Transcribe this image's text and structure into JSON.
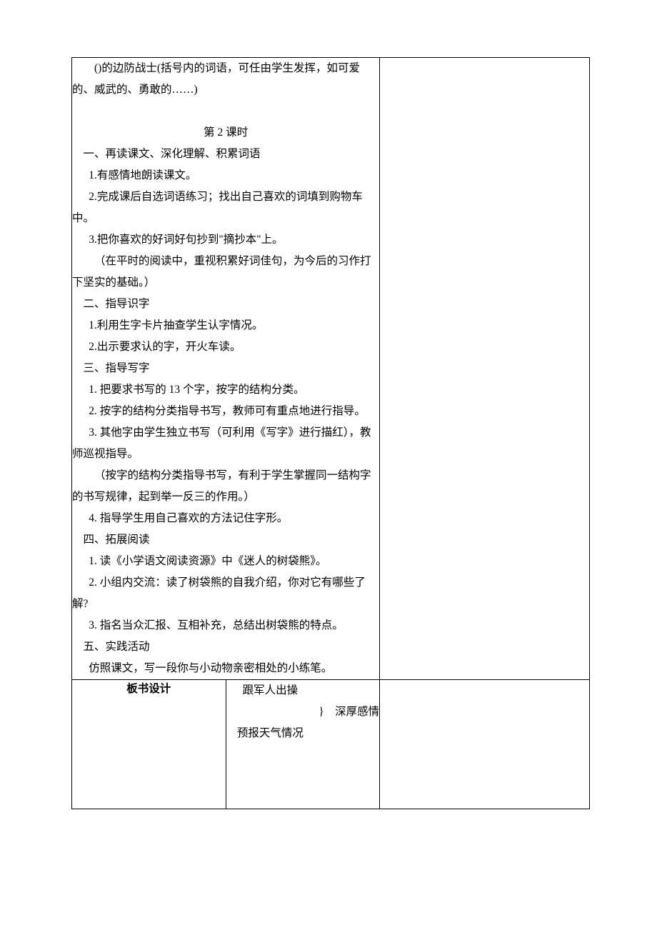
{
  "main": {
    "intro_line": "()的边防战士(括号内的词语，可任由学生发挥，如可爱的、威武的、勇敢的……)",
    "lesson_title": "第 2 课时",
    "section1": {
      "heading": "一、再读课文、深化理解、积累词语",
      "item1": "1.有感情地朗读课文。",
      "item2": "2.完成课后自选词语练习；找出自己喜欢的词填到购物车中。",
      "item3": "3.把你喜欢的好词好句抄到\"摘抄本\"上。",
      "note": "（在平时的阅读中，重视积累好词佳句，为今后的习作打下坚实的基础。）"
    },
    "section2": {
      "heading": "二、指导识字",
      "item1": "1.利用生字卡片抽查学生认字情况。",
      "item2": "2.出示要求认的字，开火车读。"
    },
    "section3": {
      "heading": "三、指导写字",
      "item1": "1. 把要求书写的 13 个字，按字的结构分类。",
      "item2": "2. 按字的结构分类指导书写，教师可有重点地进行指导。",
      "item3": "3. 其他字由学生独立书写（可利用《写字》进行描红），教师巡视指导。",
      "note": "（按字的结构分类指导书写，有利于学生掌握同一结构字的书写规律，起到举一反三的作用。）",
      "item4": "4. 指导学生用自己喜欢的方法记住字形。"
    },
    "section4": {
      "heading": "四、拓展阅读",
      "item1": "1. 读《小学语文阅读资源》中《迷人的树袋熊》。",
      "item2": "2. 小组内交流：读了树袋熊的自我介绍，你对它有哪些了解?",
      "item3": "3. 指名当众汇报、互相补充，总结出树袋熊的特点。"
    },
    "section5": {
      "heading": "五、实践活动",
      "item1": "仿照课文，写一段你与小动物亲密相处的小练笔。"
    }
  },
  "board": {
    "label": "板书设计",
    "line1": "跟军人出操",
    "brace_text": "}　深厚感情",
    "line2": "预报天气情况"
  },
  "styles": {
    "font_size": 15.5,
    "line_height": 30,
    "border_color": "#000000",
    "text_color": "#000000",
    "background_color": "#ffffff",
    "main_col_width": 430,
    "side_col_width": 293,
    "label_col_width": 84
  }
}
